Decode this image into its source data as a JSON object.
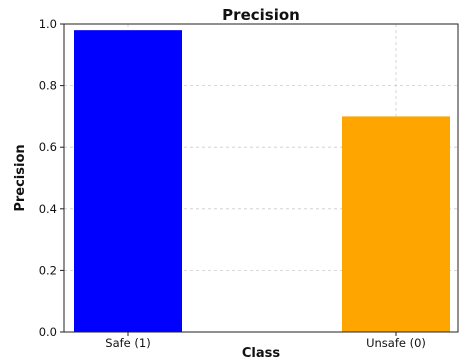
{
  "chart_data": {
    "type": "bar",
    "title": "Precision",
    "xlabel": "Class",
    "ylabel": "Precision",
    "categories": [
      "Safe (1)",
      "Unsafe (0)"
    ],
    "values": [
      0.98,
      0.7
    ],
    "colors": [
      "#0000ff",
      "#ffa500"
    ],
    "ylim": [
      0,
      1.0
    ],
    "yticks": [
      "0.0",
      "0.2",
      "0.4",
      "0.6",
      "0.8",
      "1.0"
    ],
    "grid": true
  }
}
